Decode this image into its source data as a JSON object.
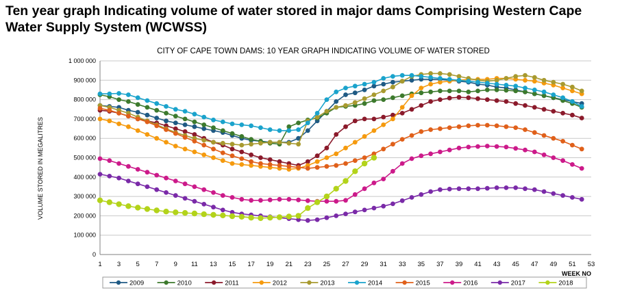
{
  "page": {
    "heading_line1": "Ten year graph Indicating volume of water stored in major dams Comprising Western Cape",
    "heading_line2": "Water Supply System (WCWSS)"
  },
  "chart_data": {
    "type": "line",
    "title": "CITY OF CAPE TOWN DAMS: 10 YEAR GRAPH INDICATING VOLUME OF WATER STORED",
    "xlabel": "WEEK NO",
    "ylabel": "VOLUME STORED IN MEGALITRES",
    "xlim": [
      1,
      53
    ],
    "ylim": [
      0,
      1000000
    ],
    "x_ticks": [
      1,
      3,
      5,
      7,
      9,
      11,
      13,
      15,
      17,
      19,
      21,
      23,
      25,
      27,
      29,
      31,
      33,
      35,
      37,
      39,
      41,
      43,
      45,
      47,
      49,
      51,
      53
    ],
    "y_ticks": [
      0,
      100000,
      200000,
      300000,
      400000,
      500000,
      600000,
      700000,
      800000,
      900000,
      1000000
    ],
    "y_tick_labels": [
      "0",
      "100 000",
      "200 000",
      "300 000",
      "400 000",
      "500 000",
      "600 000",
      "700 000",
      "800 000",
      "900 000",
      "1 000 000"
    ],
    "grid": "horizontal",
    "legend_position": "bottom",
    "x_week_step": 2,
    "series": [
      {
        "name": "2009",
        "color": "#1f5a84",
        "values": [
          770000,
          765000,
          760000,
          745000,
          735000,
          720000,
          705000,
          690000,
          680000,
          670000,
          660000,
          650000,
          640000,
          630000,
          615000,
          600000,
          590000,
          585000,
          580000,
          580000,
          580000,
          600000,
          640000,
          690000,
          740000,
          790000,
          825000,
          835000,
          850000,
          870000,
          880000,
          890000,
          895000,
          900000,
          905000,
          905000,
          905000,
          900000,
          895000,
          890000,
          880000,
          875000,
          865000,
          860000,
          850000,
          840000,
          830000,
          820000,
          810000,
          800000,
          790000,
          780000
        ]
      },
      {
        "name": "2010",
        "color": "#3d7a2d",
        "values": [
          825000,
          815000,
          800000,
          790000,
          775000,
          760000,
          745000,
          730000,
          715000,
          700000,
          685000,
          670000,
          655000,
          640000,
          625000,
          610000,
          595000,
          585000,
          575000,
          570000,
          660000,
          680000,
          695000,
          705000,
          730000,
          760000,
          765000,
          770000,
          780000,
          795000,
          800000,
          810000,
          820000,
          830000,
          835000,
          840000,
          845000,
          845000,
          845000,
          840000,
          845000,
          850000,
          850000,
          848000,
          845000,
          840000,
          830000,
          820000,
          810000,
          795000,
          780000,
          760000
        ]
      },
      {
        "name": "2011",
        "color": "#8b1a2b",
        "values": [
          745000,
          740000,
          730000,
          715000,
          700000,
          690000,
          680000,
          665000,
          650000,
          635000,
          620000,
          600000,
          580000,
          565000,
          545000,
          530000,
          515000,
          500000,
          490000,
          480000,
          470000,
          460000,
          480000,
          510000,
          550000,
          620000,
          660000,
          690000,
          700000,
          700000,
          710000,
          720000,
          730000,
          750000,
          770000,
          790000,
          800000,
          808000,
          812000,
          810000,
          805000,
          800000,
          795000,
          790000,
          780000,
          770000,
          760000,
          750000,
          740000,
          730000,
          720000,
          705000
        ]
      },
      {
        "name": "2012",
        "color": "#f59a0e",
        "values": [
          700000,
          690000,
          675000,
          660000,
          640000,
          620000,
          600000,
          580000,
          560000,
          545000,
          530000,
          515000,
          500000,
          485000,
          470000,
          465000,
          460000,
          455000,
          450000,
          445000,
          440000,
          445000,
          460000,
          480000,
          500000,
          520000,
          550000,
          580000,
          610000,
          640000,
          670000,
          700000,
          760000,
          820000,
          860000,
          880000,
          890000,
          895000,
          900000,
          905000,
          905000,
          905000,
          910000,
          910000,
          905000,
          900000,
          895000,
          885000,
          875000,
          860000,
          845000,
          830000
        ]
      },
      {
        "name": "2013",
        "color": "#a89a2f",
        "values": [
          770000,
          760000,
          745000,
          730000,
          710000,
          690000,
          670000,
          650000,
          630000,
          615000,
          600000,
          590000,
          580000,
          575000,
          570000,
          565000,
          570000,
          575000,
          580000,
          580000,
          575000,
          570000,
          690000,
          710000,
          740000,
          760000,
          770000,
          785000,
          805000,
          825000,
          845000,
          865000,
          895000,
          920000,
          930000,
          935000,
          935000,
          930000,
          920000,
          910000,
          900000,
          895000,
          900000,
          910000,
          920000,
          925000,
          915000,
          900000,
          890000,
          880000,
          865000,
          845000
        ]
      },
      {
        "name": "2014",
        "color": "#1aa3cc",
        "values": [
          830000,
          830000,
          832000,
          825000,
          810000,
          795000,
          780000,
          765000,
          750000,
          740000,
          725000,
          710000,
          695000,
          685000,
          675000,
          670000,
          665000,
          655000,
          645000,
          640000,
          640000,
          645000,
          680000,
          730000,
          800000,
          840000,
          860000,
          870000,
          880000,
          890000,
          910000,
          920000,
          925000,
          925000,
          920000,
          915000,
          910000,
          905000,
          900000,
          895000,
          890000,
          885000,
          880000,
          875000,
          870000,
          860000,
          850000,
          840000,
          825000,
          810000,
          790000,
          765000
        ]
      },
      {
        "name": "2015",
        "color": "#e0601a",
        "values": [
          755000,
          745000,
          730000,
          715000,
          700000,
          685000,
          665000,
          645000,
          625000,
          605000,
          585000,
          565000,
          545000,
          525000,
          510000,
          495000,
          480000,
          470000,
          465000,
          460000,
          455000,
          450000,
          445000,
          450000,
          455000,
          460000,
          470000,
          485000,
          500000,
          520000,
          545000,
          570000,
          595000,
          615000,
          635000,
          645000,
          650000,
          655000,
          660000,
          665000,
          668000,
          668000,
          665000,
          660000,
          655000,
          645000,
          630000,
          615000,
          600000,
          585000,
          565000,
          545000
        ]
      },
      {
        "name": "2016",
        "color": "#cc1a8a",
        "values": [
          495000,
          485000,
          470000,
          455000,
          440000,
          425000,
          410000,
          395000,
          380000,
          365000,
          350000,
          335000,
          320000,
          305000,
          295000,
          285000,
          280000,
          280000,
          282000,
          285000,
          285000,
          282000,
          278000,
          275000,
          275000,
          275000,
          280000,
          310000,
          340000,
          370000,
          390000,
          430000,
          470000,
          495000,
          510000,
          520000,
          530000,
          540000,
          550000,
          555000,
          558000,
          560000,
          558000,
          555000,
          548000,
          540000,
          530000,
          515000,
          500000,
          485000,
          465000,
          445000
        ]
      },
      {
        "name": "2017",
        "color": "#7a2aa8",
        "values": [
          415000,
          405000,
          395000,
          380000,
          365000,
          350000,
          335000,
          320000,
          305000,
          290000,
          275000,
          260000,
          245000,
          230000,
          218000,
          210000,
          205000,
          200000,
          195000,
          190000,
          185000,
          180000,
          176000,
          180000,
          190000,
          200000,
          210000,
          220000,
          230000,
          240000,
          250000,
          262000,
          278000,
          295000,
          310000,
          325000,
          335000,
          338000,
          340000,
          340000,
          340000,
          342000,
          345000,
          345000,
          345000,
          340000,
          335000,
          325000,
          315000,
          305000,
          295000,
          285000
        ]
      },
      {
        "name": "2018",
        "color": "#b3d31a",
        "values": [
          280000,
          270000,
          260000,
          250000,
          242000,
          235000,
          228000,
          222000,
          218000,
          215000,
          212000,
          208000,
          205000,
          202000,
          198000,
          195000,
          190000,
          188000,
          190000,
          193000,
          196000,
          200000,
          240000,
          270000,
          300000,
          340000,
          380000,
          430000,
          470000,
          500000
        ]
      }
    ]
  }
}
